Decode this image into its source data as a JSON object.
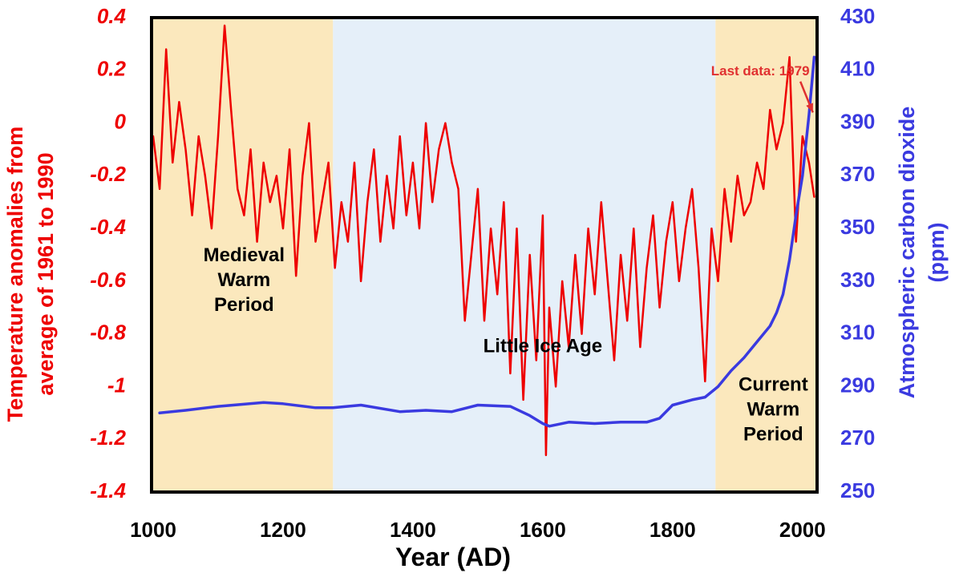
{
  "chart_data": {
    "type": "line",
    "xlabel": "Year (AD)",
    "ylabel_left": [
      "Temperature anomalies from",
      "average of 1961 to 1990"
    ],
    "ylabel_right": [
      "Atmospheric carbon dioxide",
      "(ppm)"
    ],
    "xlim": [
      1000,
      2020
    ],
    "ylim_left": [
      -1.4,
      0.4
    ],
    "ylim_right": [
      250,
      430
    ],
    "x_ticks": [
      "1000",
      "1200",
      "1400",
      "1600",
      "1800",
      "2000"
    ],
    "left_ticks": [
      "0.4",
      "0.2",
      "0",
      "-0.2",
      "-0.4",
      "-0.6",
      "-0.8",
      "-1",
      "-1.2",
      "-1.4"
    ],
    "right_ticks": [
      "430",
      "410",
      "390",
      "370",
      "350",
      "330",
      "310",
      "290",
      "270",
      "250"
    ],
    "regions": [
      {
        "name": "Medieval Warm Period",
        "lines": [
          "Medieval",
          "Warm",
          "Period"
        ],
        "start": 1000,
        "end": 1277,
        "color": "#fbe8bd",
        "label_x": 1140,
        "label_y": -0.6
      },
      {
        "name": "Little Ice Age",
        "lines": [
          "Little Ice Age"
        ],
        "start": 1277,
        "end": 1866,
        "color": "#e5eff9",
        "label_x": 1600,
        "label_y": -0.85
      },
      {
        "name": "Current Warm Period",
        "lines": [
          "Current",
          "Warm",
          "Period"
        ],
        "start": 1866,
        "end": 2020,
        "color": "#fbe8bd",
        "label_x": 1955,
        "label_y": -1.09
      }
    ],
    "annotation": {
      "text": "Last data: 1979",
      "x": 1935,
      "y": 0.2,
      "arrow_to_x": 2016,
      "arrow_to_y": 0.04
    },
    "series": [
      {
        "name": "Temperature anomaly",
        "axis": "left",
        "color": "#ee0000",
        "x": [
          1000,
          1010,
          1020,
          1030,
          1040,
          1050,
          1060,
          1070,
          1080,
          1090,
          1100,
          1110,
          1120,
          1130,
          1140,
          1150,
          1160,
          1170,
          1180,
          1190,
          1200,
          1210,
          1220,
          1230,
          1240,
          1250,
          1260,
          1270,
          1280,
          1290,
          1300,
          1310,
          1320,
          1330,
          1340,
          1350,
          1360,
          1370,
          1380,
          1390,
          1400,
          1410,
          1420,
          1430,
          1440,
          1450,
          1460,
          1470,
          1480,
          1490,
          1500,
          1510,
          1520,
          1530,
          1540,
          1550,
          1560,
          1570,
          1580,
          1590,
          1600,
          1605,
          1610,
          1620,
          1630,
          1640,
          1650,
          1660,
          1670,
          1680,
          1690,
          1700,
          1710,
          1720,
          1730,
          1740,
          1750,
          1760,
          1770,
          1780,
          1790,
          1800,
          1810,
          1820,
          1830,
          1840,
          1850,
          1860,
          1870,
          1880,
          1890,
          1900,
          1910,
          1920,
          1930,
          1940,
          1950,
          1960,
          1970,
          1980,
          1990,
          2000,
          2010,
          2018
        ],
        "values": [
          -0.05,
          -0.25,
          0.28,
          -0.15,
          0.08,
          -0.1,
          -0.35,
          -0.05,
          -0.2,
          -0.4,
          -0.05,
          0.37,
          0.05,
          -0.25,
          -0.35,
          -0.1,
          -0.45,
          -0.15,
          -0.3,
          -0.2,
          -0.4,
          -0.1,
          -0.58,
          -0.2,
          0.0,
          -0.45,
          -0.3,
          -0.15,
          -0.55,
          -0.3,
          -0.45,
          -0.15,
          -0.6,
          -0.3,
          -0.1,
          -0.45,
          -0.2,
          -0.4,
          -0.05,
          -0.35,
          -0.15,
          -0.4,
          0.0,
          -0.3,
          -0.1,
          0.0,
          -0.15,
          -0.25,
          -0.75,
          -0.5,
          -0.25,
          -0.75,
          -0.4,
          -0.65,
          -0.3,
          -0.95,
          -0.4,
          -1.05,
          -0.5,
          -0.9,
          -0.35,
          -1.26,
          -0.7,
          -1.0,
          -0.6,
          -0.85,
          -0.5,
          -0.8,
          -0.4,
          -0.65,
          -0.3,
          -0.6,
          -0.9,
          -0.5,
          -0.75,
          -0.4,
          -0.85,
          -0.55,
          -0.35,
          -0.7,
          -0.45,
          -0.3,
          -0.6,
          -0.4,
          -0.25,
          -0.55,
          -0.98,
          -0.4,
          -0.6,
          -0.25,
          -0.45,
          -0.2,
          -0.35,
          -0.3,
          -0.15,
          -0.25,
          0.05,
          -0.1,
          0.0,
          0.25,
          -0.45,
          -0.05,
          -0.15,
          -0.28
        ]
      },
      {
        "name": "Atmospheric CO2",
        "axis": "right",
        "color": "#3a3ae0",
        "x": [
          1010,
          1050,
          1100,
          1170,
          1200,
          1250,
          1277,
          1320,
          1380,
          1420,
          1460,
          1500,
          1550,
          1580,
          1600,
          1610,
          1640,
          1680,
          1720,
          1760,
          1780,
          1800,
          1830,
          1850,
          1870,
          1890,
          1910,
          1930,
          1950,
          1960,
          1970,
          1980,
          1990,
          2000,
          2010,
          2018
        ],
        "values": [
          280,
          281,
          282.5,
          284,
          283.5,
          282,
          282,
          283,
          280.5,
          281,
          280.5,
          283,
          282.5,
          279,
          276,
          275,
          276.5,
          276,
          276.5,
          276.5,
          278,
          283,
          285,
          286,
          290,
          296,
          301,
          307,
          313,
          318,
          325,
          338,
          355,
          370,
          393,
          415
        ]
      }
    ]
  }
}
